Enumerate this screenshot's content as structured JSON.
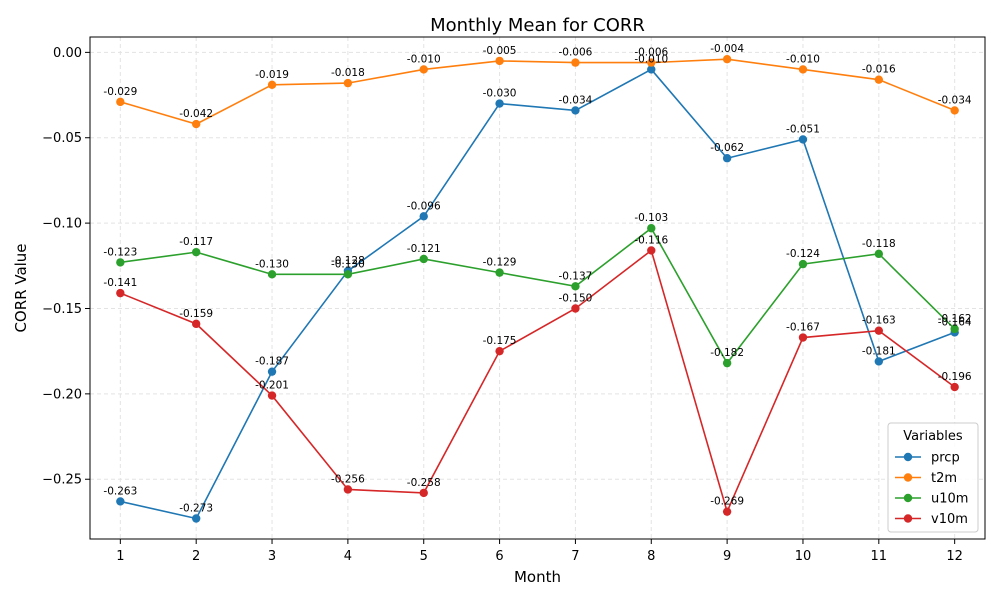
{
  "chart_data": {
    "type": "line",
    "title": "Monthly Mean for CORR",
    "xlabel": "Month",
    "ylabel": "CORR Value",
    "x": [
      1,
      2,
      3,
      4,
      5,
      6,
      7,
      8,
      9,
      10,
      11,
      12
    ],
    "ylim": [
      -0.285,
      0.009
    ],
    "yticks": [
      0.0,
      -0.05,
      -0.1,
      -0.15,
      -0.2,
      -0.25
    ],
    "ytick_labels": [
      "0.00",
      "−0.05",
      "−0.10",
      "−0.15",
      "−0.20",
      "−0.25"
    ],
    "grid": true,
    "legend": {
      "title": "Variables",
      "placement": "lower right"
    },
    "series": [
      {
        "name": "prcp",
        "color": "#1f77b4",
        "values": [
          -0.263,
          -0.273,
          -0.187,
          -0.128,
          -0.096,
          -0.03,
          -0.034,
          -0.01,
          -0.062,
          -0.051,
          -0.181,
          -0.164
        ]
      },
      {
        "name": "t2m",
        "color": "#ff7f0e",
        "values": [
          -0.029,
          -0.042,
          -0.019,
          -0.018,
          -0.01,
          -0.005,
          -0.006,
          -0.006,
          -0.004,
          -0.01,
          -0.016,
          -0.034
        ]
      },
      {
        "name": "u10m",
        "color": "#2ca02c",
        "values": [
          -0.123,
          -0.117,
          -0.13,
          -0.13,
          -0.121,
          -0.129,
          -0.137,
          -0.103,
          -0.182,
          -0.124,
          -0.118,
          -0.162
        ]
      },
      {
        "name": "v10m",
        "color": "#d62728",
        "values": [
          -0.141,
          -0.159,
          -0.201,
          -0.256,
          -0.258,
          -0.175,
          -0.15,
          -0.116,
          -0.269,
          -0.167,
          -0.163,
          -0.196
        ]
      }
    ]
  }
}
